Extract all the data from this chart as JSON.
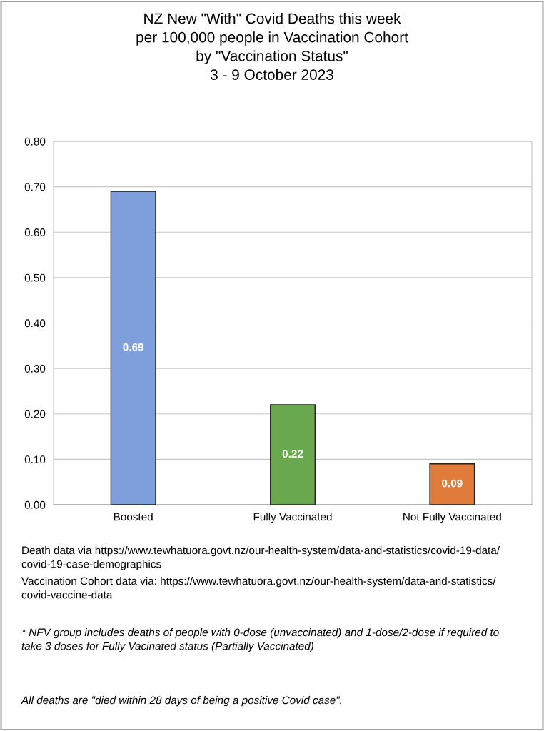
{
  "chart_data": {
    "type": "bar",
    "title": "NZ New \"With\" Covid Deaths this week\nper 100,000 people in Vaccination Cohort\nby \"Vaccination Status\"\n3 - 9 October 2023",
    "categories": [
      "Boosted",
      "Fully Vaccinated",
      "Not Fully Vaccinated"
    ],
    "values": [
      0.69,
      0.22,
      0.09
    ],
    "colors": [
      "#7f9fdc",
      "#6aa84f",
      "#e07b39"
    ],
    "data_labels": true,
    "ylim": [
      0,
      0.8
    ],
    "yticks": [
      {
        "value": 0,
        "label": "0.00"
      },
      {
        "value": 0.1,
        "label": "0.10"
      },
      {
        "value": 0.2,
        "label": "0.20"
      },
      {
        "value": 0.3,
        "label": "0.30"
      },
      {
        "value": 0.4,
        "label": "0.40"
      },
      {
        "value": 0.5,
        "label": "0.50"
      },
      {
        "value": 0.6,
        "label": "0.60"
      },
      {
        "value": 0.7,
        "label": "0.70"
      },
      {
        "value": 0.8,
        "label": "0.80"
      }
    ],
    "grid": "y",
    "annotations": [
      "Death data via https://www.tewhatuora.govt.nz/our-health-system/data-and-statistics/covid-19-data/covid-19-case-demographics",
      "Vaccination Cohort data via: https://www.tewhatuora.govt.nz/our-health-system/data-and-statistics/covid-vaccine-data",
      "* NFV group includes deaths of people with 0-dose (unvaccinated) and 1-dose/2-dose if required to take 3 doses for Fully Vacinated status (Partially Vaccinated)",
      "All deaths are \"died within 28 days of being a positive Covid case\"."
    ]
  }
}
